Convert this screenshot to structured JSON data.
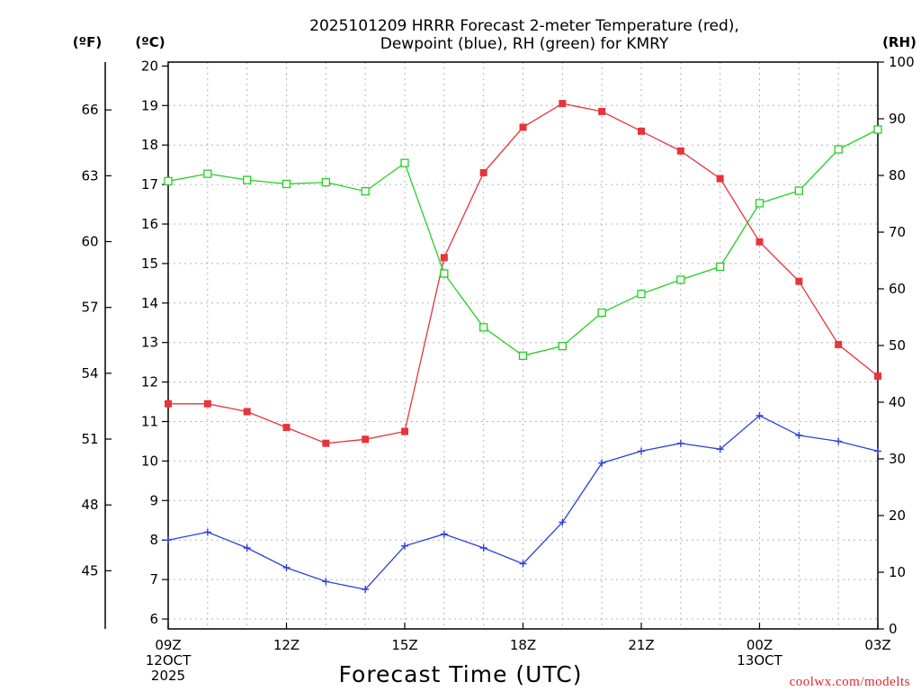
{
  "chart_data": {
    "type": "line",
    "title_lines": [
      "2025101209 HRRR Forecast 2-meter Temperature (red),",
      "Dewpoint (blue), RH (green) for KMRY"
    ],
    "xlabel": "Forecast Time (UTC)",
    "credit": "coolwx.com/modelts",
    "x_hours": [
      0,
      1,
      2,
      3,
      4,
      5,
      6,
      7,
      8,
      9,
      10,
      11,
      12,
      13,
      14,
      15,
      16,
      17,
      18
    ],
    "x_ticks": [
      {
        "hour": 0,
        "lines": [
          "09Z",
          "12OCT",
          "2025"
        ]
      },
      {
        "hour": 3,
        "lines": [
          "12Z"
        ]
      },
      {
        "hour": 6,
        "lines": [
          "15Z"
        ]
      },
      {
        "hour": 9,
        "lines": [
          "18Z"
        ]
      },
      {
        "hour": 12,
        "lines": [
          "21Z"
        ]
      },
      {
        "hour": 15,
        "lines": [
          "00Z",
          "13OCT"
        ]
      },
      {
        "hour": 18,
        "lines": [
          "03Z"
        ]
      }
    ],
    "y_celsius": {
      "label": "(ºC)",
      "range": [
        5.75,
        20.1
      ],
      "ticks": [
        6,
        7,
        8,
        9,
        10,
        11,
        12,
        13,
        14,
        15,
        16,
        17,
        18,
        19,
        20
      ]
    },
    "y_fahrenheit": {
      "label": "(ºF)",
      "ticks": [
        45,
        48,
        51,
        54,
        57,
        60,
        63,
        66
      ]
    },
    "y_rh": {
      "label": "(RH)",
      "range": [
        0,
        100
      ],
      "ticks": [
        0,
        10,
        20,
        30,
        40,
        50,
        60,
        70,
        80,
        90,
        100
      ]
    },
    "series": [
      {
        "name": "2-meter Temperature",
        "unit": "C",
        "color": "#e8333a",
        "marker": "filled-square",
        "values": [
          11.45,
          11.45,
          11.25,
          10.85,
          10.45,
          10.55,
          10.75,
          15.15,
          17.3,
          18.45,
          19.05,
          18.85,
          18.35,
          17.85,
          17.15,
          15.55,
          14.55,
          12.95,
          12.15
        ]
      },
      {
        "name": "Dewpoint",
        "unit": "C",
        "color": "#2b3fe0",
        "marker": "plus",
        "values": [
          8.0,
          8.2,
          7.8,
          7.3,
          6.95,
          6.75,
          7.85,
          8.15,
          7.8,
          7.4,
          8.45,
          9.95,
          10.25,
          10.45,
          10.3,
          11.15,
          10.65,
          10.5,
          10.25
        ]
      },
      {
        "name": "RH",
        "unit": "%",
        "color": "#22d022",
        "marker": "open-square",
        "values": [
          79,
          80.3,
          79.2,
          78.5,
          78.8,
          77.2,
          82.2,
          62.7,
          53.2,
          48.2,
          49.9,
          55.8,
          59.1,
          61.6,
          63.9,
          75.1,
          77.3,
          84.6,
          88.1
        ]
      }
    ]
  }
}
